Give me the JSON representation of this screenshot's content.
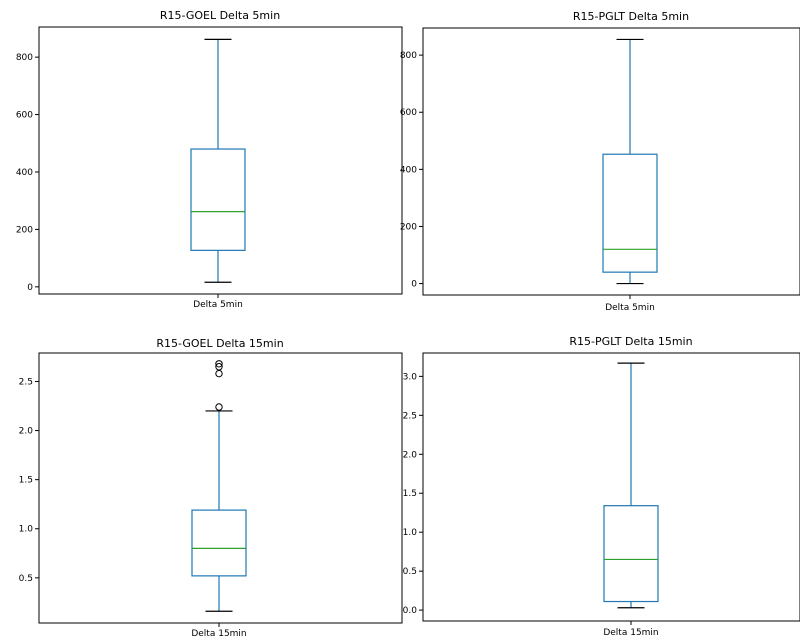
{
  "chart_data": [
    {
      "type": "box",
      "title": "R15-GOEL Delta 5min",
      "categories": [
        "Delta 5min"
      ],
      "yticks": [
        0,
        200,
        400,
        600,
        800
      ],
      "ytick_labels": [
        "0",
        "200",
        "400",
        "600",
        "800"
      ],
      "ylim": [
        -25,
        905
      ],
      "stats": {
        "whisker_low": 16,
        "q1": 127,
        "median": 262,
        "q3": 480,
        "whisker_high": 862
      },
      "outliers": [],
      "colors": {
        "box": "#1f77b4",
        "whisker": "#1f77b4",
        "median": "#2ca02c",
        "cap": "#000000"
      }
    },
    {
      "type": "box",
      "title": "R15-PGLT Delta 5min",
      "categories": [
        "Delta 5min"
      ],
      "yticks": [
        0,
        200,
        400,
        600,
        800
      ],
      "ytick_labels": [
        "0",
        "200",
        "400",
        "600",
        "800"
      ],
      "ylim": [
        -40,
        895
      ],
      "stats": {
        "whisker_low": 0,
        "q1": 40,
        "median": 120,
        "q3": 453,
        "whisker_high": 855
      },
      "outliers": [],
      "colors": {
        "box": "#1f77b4",
        "whisker": "#1f77b4",
        "median": "#2ca02c",
        "cap": "#000000"
      }
    },
    {
      "type": "box",
      "title": "R15-GOEL Delta 15min",
      "categories": [
        "Delta 15min"
      ],
      "yticks": [
        0.5,
        1.0,
        1.5,
        2.0,
        2.5
      ],
      "ytick_labels": [
        "0.5",
        "1.0",
        "1.5",
        "2.0",
        "2.5"
      ],
      "ylim": [
        0.04,
        2.79
      ],
      "stats": {
        "whisker_low": 0.16,
        "q1": 0.52,
        "median": 0.8,
        "q3": 1.19,
        "whisker_high": 2.2
      },
      "outliers": [
        2.24,
        2.58,
        2.65,
        2.68
      ],
      "colors": {
        "box": "#1f77b4",
        "whisker": "#1f77b4",
        "median": "#2ca02c",
        "cap": "#000000"
      }
    },
    {
      "type": "box",
      "title": "R15-PGLT Delta 15min",
      "categories": [
        "Delta 15min"
      ],
      "yticks": [
        0.0,
        0.5,
        1.0,
        1.5,
        2.0,
        2.5,
        3.0
      ],
      "ytick_labels": [
        "0.0",
        "0.5",
        "1.0",
        "1.5",
        "2.0",
        "2.5",
        "3.0"
      ],
      "ylim": [
        -0.14,
        3.3
      ],
      "stats": {
        "whisker_low": 0.03,
        "q1": 0.11,
        "median": 0.65,
        "q3": 1.34,
        "whisker_high": 3.17
      },
      "outliers": [],
      "colors": {
        "box": "#1f77b4",
        "whisker": "#1f77b4",
        "median": "#2ca02c",
        "cap": "#000000"
      }
    }
  ]
}
